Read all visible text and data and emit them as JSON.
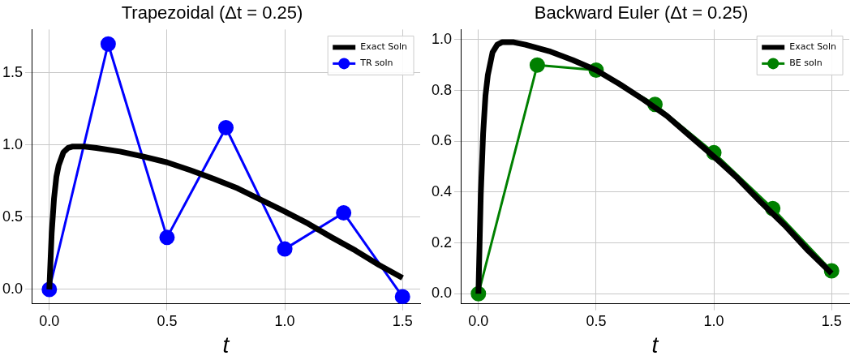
{
  "chart_data": [
    {
      "type": "line",
      "title": "Trapezoidal (Δt = 0.25)",
      "xlabel": "t",
      "xlim": [
        -0.075,
        1.575
      ],
      "ylim": [
        -0.1,
        1.8
      ],
      "xticks": [
        {
          "value": 0,
          "label": "0.0"
        },
        {
          "value": 0.5,
          "label": "0.5"
        },
        {
          "value": 1,
          "label": "1.0"
        },
        {
          "value": 1.5,
          "label": "1.5"
        }
      ],
      "yticks": [
        {
          "value": 0,
          "label": "0.0"
        },
        {
          "value": 0.5,
          "label": "0.5"
        },
        {
          "value": 1,
          "label": "1.0"
        },
        {
          "value": 1.5,
          "label": "1.5"
        }
      ],
      "grid": true,
      "legend": "top right",
      "series": [
        {
          "name": "Exact Soln",
          "color": "#000000",
          "marker": "none",
          "x": [
            0,
            0.01,
            0.02,
            0.03,
            0.04,
            0.06,
            0.08,
            0.1,
            0.15,
            0.2,
            0.3,
            0.4,
            0.5,
            0.6,
            0.7,
            0.8,
            0.9,
            1.0,
            1.1,
            1.2,
            1.3,
            1.4,
            1.5
          ],
          "values": [
            0,
            0.39,
            0.63,
            0.78,
            0.86,
            0.95,
            0.98,
            0.99,
            0.99,
            0.98,
            0.955,
            0.92,
            0.88,
            0.825,
            0.765,
            0.7,
            0.62,
            0.54,
            0.455,
            0.36,
            0.27,
            0.17,
            0.08
          ]
        },
        {
          "name": "TR soln",
          "color": "#0000ff",
          "marker": "circle",
          "x": [
            0,
            0.25,
            0.5,
            0.75,
            1.0,
            1.25,
            1.5
          ],
          "values": [
            0,
            1.7,
            0.36,
            1.12,
            0.28,
            0.53,
            -0.05
          ]
        }
      ]
    },
    {
      "type": "line",
      "title": "Backward Euler (Δt = 0.25)",
      "xlabel": "t",
      "xlim": [
        -0.075,
        1.575
      ],
      "ylim": [
        -0.04,
        1.04
      ],
      "xticks": [
        {
          "value": 0,
          "label": "0.0"
        },
        {
          "value": 0.5,
          "label": "0.5"
        },
        {
          "value": 1,
          "label": "1.0"
        },
        {
          "value": 1.5,
          "label": "1.5"
        }
      ],
      "yticks": [
        {
          "value": 0,
          "label": "0.0"
        },
        {
          "value": 0.2,
          "label": "0.2"
        },
        {
          "value": 0.4,
          "label": "0.4"
        },
        {
          "value": 0.6,
          "label": "0.6"
        },
        {
          "value": 0.8,
          "label": "0.8"
        },
        {
          "value": 1,
          "label": "1.0"
        }
      ],
      "grid": true,
      "legend": "top right",
      "series": [
        {
          "name": "Exact Soln",
          "color": "#000000",
          "marker": "none",
          "x": [
            0,
            0.01,
            0.02,
            0.03,
            0.04,
            0.06,
            0.08,
            0.1,
            0.15,
            0.2,
            0.3,
            0.4,
            0.5,
            0.6,
            0.7,
            0.8,
            0.9,
            1.0,
            1.1,
            1.2,
            1.3,
            1.4,
            1.5
          ],
          "values": [
            0,
            0.39,
            0.63,
            0.78,
            0.86,
            0.95,
            0.98,
            0.99,
            0.99,
            0.98,
            0.955,
            0.92,
            0.88,
            0.825,
            0.765,
            0.7,
            0.62,
            0.54,
            0.455,
            0.36,
            0.27,
            0.17,
            0.08
          ]
        },
        {
          "name": "BE soln",
          "color": "#008000",
          "marker": "circle",
          "x": [
            0,
            0.25,
            0.5,
            0.75,
            1.0,
            1.25,
            1.5
          ],
          "values": [
            0,
            0.9,
            0.88,
            0.745,
            0.555,
            0.335,
            0.09
          ]
        }
      ]
    }
  ]
}
